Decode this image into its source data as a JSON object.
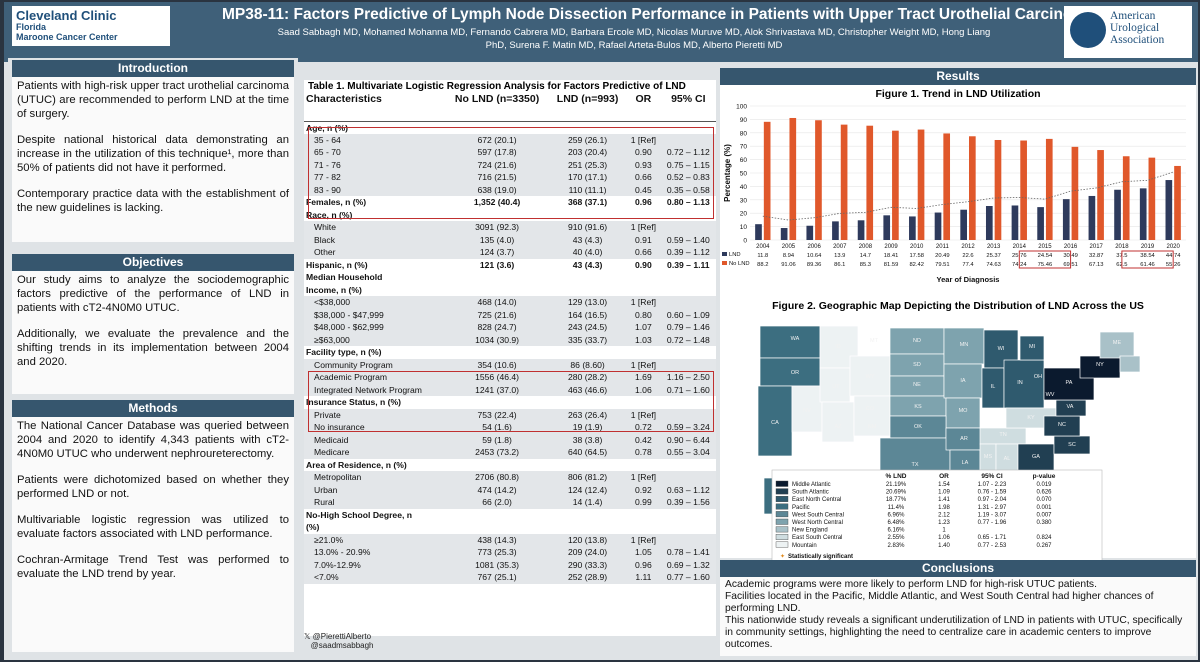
{
  "header": {
    "org1": "Cleveland Clinic",
    "org2": "Florida",
    "org3": "Maroone Cancer Center",
    "title": "MP38-11: Factors Predictive of Lymph Node Dissection Performance in Patients with Upper Tract Urothelial Carcinomas",
    "authors_line1": "Saad Sabbagh MD, Mohamed Mohanna MD, Fernando Cabrera MD, Barbara Ercole MD, Nicolas Muruve MD, Alok Shrivastava MD, Christopher Weight MD, Hong Liang",
    "authors_line2": "PhD, Surena F. Matin MD, Rafael Arteta-Bulos MD, Alberto Pieretti MD",
    "aua": "American Urological Association"
  },
  "intro": {
    "heading": "Introduction",
    "p1": "Patients with high-risk upper tract urothelial carcinoma (UTUC) are recommended to perform LND at the time of surgery.",
    "p2": "Despite national historical data demonstrating an increase in the utilization of this technique¹, more than 50% of patients did not have it performed.",
    "p3": "Contemporary practice data with the establishment of the new guidelines is lacking."
  },
  "objectives": {
    "heading": "Objectives",
    "p1": "Our study aims to analyze the sociodemographic factors predictive of the performance of LND in patients with cT2-4N0M0 UTUC.",
    "p2": "Additionally, we evaluate the prevalence and the shifting trends in its implementation between 2004 and 2020."
  },
  "methods": {
    "heading": "Methods",
    "p1": "The National Cancer Database was queried between 2004 and 2020 to identify 4,343 patients with cT2-4N0M0 UTUC who underwent nephroureterectomy.",
    "p2": "Patients were dichotomized based on whether they performed LND or not.",
    "p3": "Multivariable logistic regression was utilized to evaluate factors associated with LND performance.",
    "p4": "Cochran-Armitage Trend Test was performed to evaluate the LND trend by year."
  },
  "table": {
    "caption": "Table 1. Multivariate Logistic Regression Analysis for Factors Predictive of LND",
    "headers": [
      "Characteristics",
      "No LND (n=3350)",
      "LND (n=993)",
      "OR",
      "95% CI"
    ],
    "rows": [
      [
        "Age, n (%)",
        "",
        "",
        "",
        ""
      ],
      [
        "35 - 64",
        "672 (20.1)",
        "259 (26.1)",
        "1 [Ref]",
        ""
      ],
      [
        "65 - 70",
        "597 (17.8)",
        "203 (20.4)",
        "0.90",
        "0.72 – 1.12"
      ],
      [
        "71 - 76",
        "724 (21.6)",
        "251 (25.3)",
        "0.93",
        "0.75 – 1.15"
      ],
      [
        "77 - 82",
        "716 (21.5)",
        "170 (17.1)",
        "0.66",
        "0.52 – 0.83"
      ],
      [
        "83 - 90",
        "638 (19.0)",
        "110 (11.1)",
        "0.45",
        "0.35 – 0.58"
      ],
      [
        "Females, n (%)",
        "1,352 (40.4)",
        "368 (37.1)",
        "0.96",
        "0.80 – 1.13"
      ],
      [
        "Race, n (%)",
        "",
        "",
        "",
        ""
      ],
      [
        "White",
        "3091 (92.3)",
        "910 (91.6)",
        "1 [Ref]",
        ""
      ],
      [
        "Black",
        "135 (4.0)",
        "43 (4.3)",
        "0.91",
        "0.59 – 1.40"
      ],
      [
        "Other",
        "124 (3.7)",
        "40 (4.0)",
        "0.66",
        "0.39 – 1.12"
      ],
      [
        "Hispanic, n (%)",
        "121 (3.6)",
        "43 (4.3)",
        "0.90",
        "0.39 – 1.11"
      ],
      [
        "Median Household",
        "",
        "",
        "",
        ""
      ],
      [
        "Income, n (%)",
        "",
        "",
        "",
        ""
      ],
      [
        "<$38,000",
        "468 (14.0)",
        "129 (13.0)",
        "1 [Ref]",
        ""
      ],
      [
        "$38,000 - $47,999",
        "725 (21.6)",
        "164 (16.5)",
        "0.80",
        "0.60 – 1.09"
      ],
      [
        "$48,000 - $62,999",
        "828 (24.7)",
        "243 (24.5)",
        "1.07",
        "0.79 – 1.46"
      ],
      [
        "≥$63,000",
        "1034 (30.9)",
        "335 (33.7)",
        "1.03",
        "0.72 – 1.48"
      ],
      [
        "Facility type, n (%)",
        "",
        "",
        "",
        ""
      ],
      [
        "Community Program",
        "354 (10.6)",
        "86 (8.60)",
        "1 [Ref]",
        ""
      ],
      [
        "Academic Program",
        "1556 (46.4)",
        "280 (28.2)",
        "1.69",
        "1.16 – 2.50"
      ],
      [
        "Integrated Network Program",
        "1241 (37.0)",
        "463 (46.6)",
        "1.06",
        "0.71 – 1.60"
      ],
      [
        "Insurance Status, n (%)",
        "",
        "",
        "",
        ""
      ],
      [
        "Private",
        "753 (22.4)",
        "263 (26.4)",
        "1 [Ref]",
        ""
      ],
      [
        "No insurance",
        "54 (1.6)",
        "19 (1.9)",
        "0.72",
        "0.59 – 3.24"
      ],
      [
        "Medicaid",
        "59 (1.8)",
        "38 (3.8)",
        "0.42",
        "0.90 – 6.44"
      ],
      [
        "Medicare",
        "2453 (73.2)",
        "640 (64.5)",
        "0.78",
        "0.55 – 3.04"
      ],
      [
        "Area of Residence, n (%)",
        "",
        "",
        "",
        ""
      ],
      [
        "Metropolitan",
        "2706 (80.8)",
        "806 (81.2)",
        "1 [Ref]",
        ""
      ],
      [
        "Urban",
        "474 (14.2)",
        "124 (12.4)",
        "0.92",
        "0.63 – 1.12"
      ],
      [
        "Rural",
        "66 (2.0)",
        "14 (1.4)",
        "0.99",
        "0.39 – 1.56"
      ],
      [
        "No-High School Degree, n",
        "",
        "",
        "",
        ""
      ],
      [
        "(%)",
        "",
        "",
        "",
        ""
      ],
      [
        "≥21.0%",
        "438 (14.3)",
        "120 (13.8)",
        "1 [Ref]",
        ""
      ],
      [
        "13.0% - 20.9%",
        "773 (25.3)",
        "209 (24.0)",
        "1.05",
        "0.78 – 1.41"
      ],
      [
        "7.0%-12.9%",
        "1081 (35.3)",
        "290 (33.3)",
        "0.96",
        "0.69 – 1.32"
      ],
      [
        "<7.0%",
        "767 (25.1)",
        "252 (28.9)",
        "1.11",
        "0.77 – 1.60"
      ]
    ],
    "social1": "@PierettiAlberto",
    "social2": "@saadmsabbagh"
  },
  "results": {
    "heading": "Results"
  },
  "chart_data": [
    {
      "type": "bar",
      "title": "Figure 1. Trend in LND Utilization",
      "xlabel": "Year of Diagnosis",
      "ylabel": "Percentage (%)",
      "ylim": [
        0,
        100
      ],
      "yticks": [
        0,
        10,
        20,
        30,
        40,
        50,
        60,
        70,
        80,
        90,
        100
      ],
      "categories": [
        "2004",
        "2005",
        "2006",
        "2007",
        "2008",
        "2009",
        "2010",
        "2011",
        "2012",
        "2013",
        "2014",
        "2015",
        "2016",
        "2017",
        "2018",
        "2019",
        "2020"
      ],
      "series": [
        {
          "name": "LND",
          "color": "#2e3a5c",
          "values": [
            11.8,
            8.94,
            10.64,
            13.9,
            14.7,
            18.41,
            17.58,
            20.49,
            22.6,
            25.37,
            25.76,
            24.54,
            30.49,
            32.87,
            37.5,
            38.54,
            44.74
          ]
        },
        {
          "name": "No LND",
          "color": "#e0582b",
          "values": [
            88.2,
            91.06,
            89.36,
            86.1,
            85.3,
            81.59,
            82.42,
            79.51,
            77.4,
            74.63,
            74.24,
            75.46,
            69.51,
            67.13,
            62.5,
            61.46,
            55.26
          ]
        }
      ],
      "table_labels": {
        "lnd": [
          "11.8",
          "8.94",
          "10.64",
          "13.9",
          "14.7",
          "18.41",
          "17.58",
          "20.49",
          "22.6",
          "25.37",
          "25.76",
          "24.54",
          "30.49",
          "32.87",
          "37.5",
          "38.54",
          "44.74"
        ],
        "nolnd": [
          "88.2",
          "91.06",
          "89.36",
          "86.1",
          "85.3",
          "81.59",
          "82.42",
          "79.51",
          "77.4",
          "74.63",
          "74.24",
          "75.46",
          "69.51",
          "67.13",
          "62.5",
          "61.46",
          "55.26"
        ]
      }
    }
  ],
  "map": {
    "title": "Figure 2. Geographic Map Depicting the Distribution of LND Across the US",
    "states": [
      "WA",
      "OR",
      "CA",
      "NV",
      "ID",
      "MT",
      "WY",
      "UT",
      "CO",
      "AZ",
      "NM",
      "ND",
      "SD",
      "NE",
      "KS",
      "OK",
      "TX",
      "MN",
      "IA",
      "MO",
      "AR",
      "LA",
      "WI",
      "IL",
      "MI",
      "IN",
      "OH",
      "KY",
      "TN",
      "MS",
      "AL",
      "GA",
      "FL",
      "SC",
      "NC",
      "VA",
      "WV",
      "PA",
      "NY",
      "ME",
      "AK"
    ],
    "legend_headers": [
      "% LND",
      "OR",
      "95% CI",
      "p-value"
    ],
    "legend_rows": [
      [
        "Middle Atlantic",
        "21.19%",
        "1.54",
        "1.07 - 2.23",
        "0.019"
      ],
      [
        "South Atlantic",
        "20.69%",
        "1.09",
        "0.76 - 1.59",
        "0.626"
      ],
      [
        "East North Central",
        "18.77%",
        "1.41",
        "0.97 - 2.04",
        "0.070"
      ],
      [
        "Pacific",
        "11.4%",
        "1.98",
        "1.31 - 2.97",
        "0.001"
      ],
      [
        "West South Central",
        "6.96%",
        "2.12",
        "1.19 - 3.07",
        "0.007"
      ],
      [
        "West North Central",
        "6.48%",
        "1.23",
        "0.77 - 1.96",
        "0.380"
      ],
      [
        "New England",
        "6.16%",
        "1",
        "",
        ""
      ],
      [
        "East South Central",
        "2.55%",
        "1.06",
        "0.65 - 1.71",
        "0.824"
      ],
      [
        "Mountain",
        "2.83%",
        "1.40",
        "0.77 - 2.53",
        "0.267"
      ]
    ],
    "footnote": "Statistically significant",
    "colors": {
      "Middle Atlantic": "#0b1a2e",
      "South Atlantic": "#213f52",
      "East North Central": "#2f5a6e",
      "Pacific": "#3c6e80",
      "West South Central": "#5c8796",
      "West North Central": "#7ea3ae",
      "New England": "#a9c1c8",
      "East South Central": "#cfdde0",
      "Mountain": "#edf2f3"
    }
  },
  "conclusions": {
    "heading": "Conclusions",
    "p1": "Academic programs were more likely to perform LND for high-risk UTUC patients.",
    "p2": "Facilities located in the Pacific, Middle Atlantic, and West South Central had higher chances of performing LND.",
    "p3": "This nationwide study reveals a significant underutilization of LND in patients with UTUC, specifically in community settings, highlighting the need to centralize care in academic centers to improve outcomes."
  }
}
